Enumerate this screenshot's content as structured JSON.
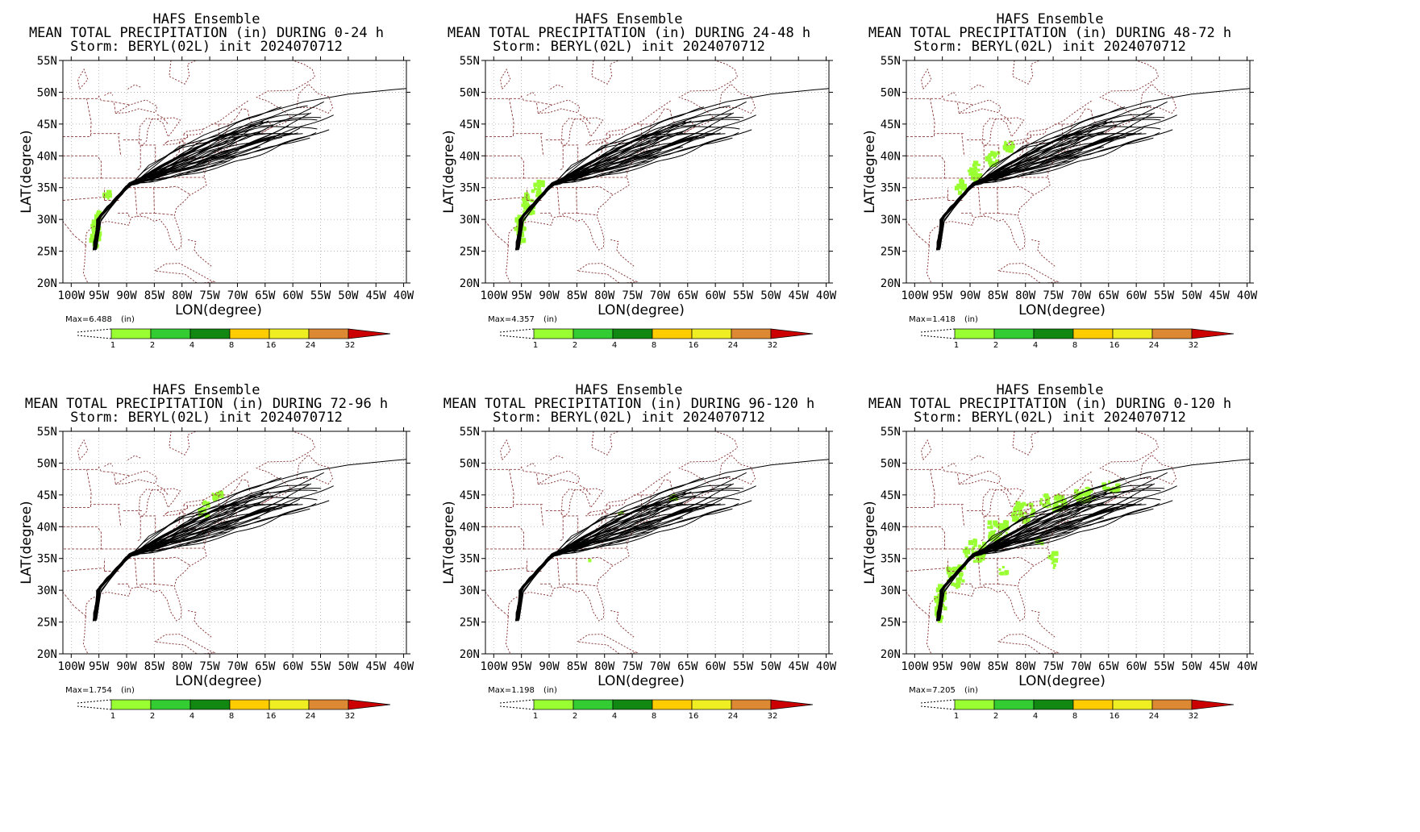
{
  "panels": [
    {
      "title": "HAFS Ensemble",
      "subtitle": "MEAN TOTAL PRECIPITATION (in) DURING  0-24 h",
      "storm": "Storm: BERYL(02L) init 2024070712",
      "max": "Max=6.488",
      "precip": "gulf"
    },
    {
      "title": "HAFS Ensemble",
      "subtitle": "MEAN TOTAL PRECIPITATION (in) DURING 24-48 h",
      "storm": "Storm: BERYL(02L) init 2024070712",
      "max": "Max=4.357",
      "precip": "texas"
    },
    {
      "title": "HAFS Ensemble",
      "subtitle": "MEAN TOTAL PRECIPITATION (in) DURING 48-72 h",
      "storm": "Storm: BERYL(02L) init 2024070712",
      "max": "Max=1.418",
      "precip": "ohio"
    },
    {
      "title": "HAFS Ensemble",
      "subtitle": "MEAN TOTAL PRECIPITATION (in) DURING 72-96 h",
      "storm": "Storm: BERYL(02L) init 2024070712",
      "max": "Max=1.754",
      "precip": "newengland"
    },
    {
      "title": "HAFS Ensemble",
      "subtitle": "MEAN TOTAL PRECIPITATION (in) DURING 96-120 h",
      "storm": "Storm: BERYL(02L) init 2024070712",
      "max": "Max=1.198",
      "precip": "atlantic"
    },
    {
      "title": "HAFS Ensemble",
      "subtitle": "MEAN TOTAL PRECIPITATION (in) DURING 0-120 h",
      "storm": "Storm: BERYL(02L) init 2024070712",
      "max": "Max=7.205",
      "precip": "total"
    }
  ],
  "axes": {
    "xlabel": "LON(degree)",
    "ylabel": "LAT(degree)",
    "xticks": [
      -100,
      -95,
      -90,
      -85,
      -80,
      -75,
      -70,
      -65,
      -60,
      -55,
      -50,
      -45,
      -40
    ],
    "xtick_labels": [
      "100W",
      "95W",
      "90W",
      "85W",
      "80W",
      "75W",
      "70W",
      "65W",
      "60W",
      "55W",
      "50W",
      "45W",
      "40W"
    ],
    "yticks": [
      20,
      25,
      30,
      35,
      40,
      45,
      50,
      55
    ],
    "ytick_labels": [
      "20N",
      "25N",
      "30N",
      "35N",
      "40N",
      "45N",
      "50N",
      "55N"
    ],
    "xlim": [
      -101.5,
      -39.5
    ],
    "ylim": [
      20,
      55
    ],
    "grid": true
  },
  "colorbar": {
    "unit": "(in)",
    "levels": [
      "1",
      "2",
      "4",
      "8",
      "16",
      "24",
      "32"
    ],
    "colors": [
      "#99ff33",
      "#33cc33",
      "#118811",
      "#ffcc00",
      "#eeee22",
      "#dd8833",
      "#cc0000"
    ]
  },
  "colors": {
    "tracks": "#000000",
    "coast": "#8b3a3a",
    "grid": "#aaaaaa",
    "precip": "#99ff33"
  }
}
